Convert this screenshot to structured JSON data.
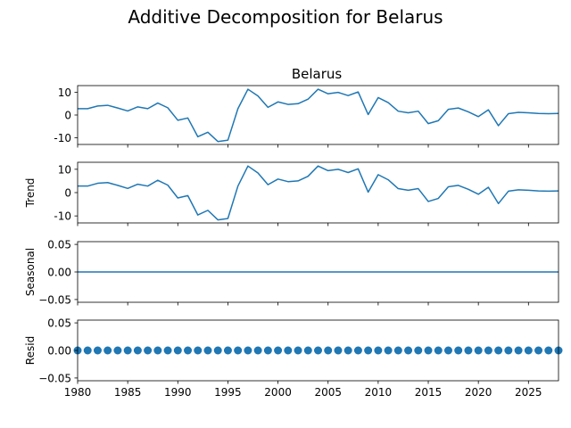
{
  "figure": {
    "suptitle": "Additive Decomposition for Belarus",
    "top_panel_title": "Belarus"
  },
  "colors": {
    "line": "#1f77b4",
    "axes": "#000000",
    "background": "#ffffff"
  },
  "chart_data": [
    {
      "type": "line",
      "panel": "observed",
      "title": "Belarus",
      "ylabel": "",
      "x": [
        1980,
        1981,
        1982,
        1983,
        1984,
        1985,
        1986,
        1987,
        1988,
        1989,
        1990,
        1991,
        1992,
        1993,
        1994,
        1995,
        1996,
        1997,
        1998,
        1999,
        2000,
        2001,
        2002,
        2003,
        2004,
        2005,
        2006,
        2007,
        2008,
        2009,
        2010,
        2011,
        2012,
        2013,
        2014,
        2015,
        2016,
        2017,
        2018,
        2019,
        2020,
        2021,
        2022,
        2023,
        2024,
        2025,
        2026,
        2027,
        2028
      ],
      "values": [
        2.8,
        2.8,
        4.0,
        4.3,
        3.1,
        1.8,
        3.6,
        2.8,
        5.3,
        3.2,
        -2.3,
        -1.3,
        -9.6,
        -7.6,
        -11.7,
        -11.1,
        2.8,
        11.4,
        8.4,
        3.4,
        5.8,
        4.7,
        5.0,
        7.0,
        11.4,
        9.4,
        10.0,
        8.6,
        10.2,
        0.2,
        7.7,
        5.5,
        1.7,
        1.0,
        1.7,
        -3.8,
        -2.5,
        2.5,
        3.1,
        1.4,
        -0.7,
        2.3,
        -4.7,
        0.6,
        1.2,
        1.0,
        0.7,
        0.6,
        0.7
      ],
      "xlim": [
        1980,
        2028
      ],
      "ylim": [
        -13,
        13
      ],
      "yticks": [
        -10,
        0,
        10
      ]
    },
    {
      "type": "line",
      "panel": "trend",
      "ylabel": "Trend",
      "x": [
        1980,
        1981,
        1982,
        1983,
        1984,
        1985,
        1986,
        1987,
        1988,
        1989,
        1990,
        1991,
        1992,
        1993,
        1994,
        1995,
        1996,
        1997,
        1998,
        1999,
        2000,
        2001,
        2002,
        2003,
        2004,
        2005,
        2006,
        2007,
        2008,
        2009,
        2010,
        2011,
        2012,
        2013,
        2014,
        2015,
        2016,
        2017,
        2018,
        2019,
        2020,
        2021,
        2022,
        2023,
        2024,
        2025,
        2026,
        2027,
        2028
      ],
      "values": [
        2.8,
        2.8,
        4.0,
        4.3,
        3.1,
        1.8,
        3.6,
        2.8,
        5.3,
        3.2,
        -2.3,
        -1.3,
        -9.6,
        -7.6,
        -11.7,
        -11.1,
        2.8,
        11.4,
        8.4,
        3.4,
        5.8,
        4.7,
        5.0,
        7.0,
        11.4,
        9.4,
        10.0,
        8.6,
        10.2,
        0.2,
        7.7,
        5.5,
        1.7,
        1.0,
        1.7,
        -3.8,
        -2.5,
        2.5,
        3.1,
        1.4,
        -0.7,
        2.3,
        -4.7,
        0.6,
        1.2,
        1.0,
        0.7,
        0.6,
        0.7
      ],
      "xlim": [
        1980,
        2028
      ],
      "ylim": [
        -13,
        13
      ],
      "yticks": [
        -10,
        0,
        10
      ]
    },
    {
      "type": "line",
      "panel": "seasonal",
      "ylabel": "Seasonal",
      "x": [
        1980,
        2028
      ],
      "values": [
        0.0,
        0.0
      ],
      "xlim": [
        1980,
        2028
      ],
      "ylim": [
        -0.055,
        0.055
      ],
      "yticks": [
        -0.05,
        0.0,
        0.05
      ],
      "ytick_labels": [
        "−0.05",
        "0.00",
        "0.05"
      ]
    },
    {
      "type": "scatter",
      "panel": "resid",
      "ylabel": "Resid",
      "x": [
        1980,
        1981,
        1982,
        1983,
        1984,
        1985,
        1986,
        1987,
        1988,
        1989,
        1990,
        1991,
        1992,
        1993,
        1994,
        1995,
        1996,
        1997,
        1998,
        1999,
        2000,
        2001,
        2002,
        2003,
        2004,
        2005,
        2006,
        2007,
        2008,
        2009,
        2010,
        2011,
        2012,
        2013,
        2014,
        2015,
        2016,
        2017,
        2018,
        2019,
        2020,
        2021,
        2022,
        2023,
        2024,
        2025,
        2026,
        2027,
        2028
      ],
      "values": [
        0,
        0,
        0,
        0,
        0,
        0,
        0,
        0,
        0,
        0,
        0,
        0,
        0,
        0,
        0,
        0,
        0,
        0,
        0,
        0,
        0,
        0,
        0,
        0,
        0,
        0,
        0,
        0,
        0,
        0,
        0,
        0,
        0,
        0,
        0,
        0,
        0,
        0,
        0,
        0,
        0,
        0,
        0,
        0,
        0,
        0,
        0,
        0,
        0
      ],
      "xlim": [
        1980,
        2028
      ],
      "ylim": [
        -0.055,
        0.055
      ],
      "yticks": [
        -0.05,
        0.0,
        0.05
      ],
      "ytick_labels": [
        "−0.05",
        "0.00",
        "0.05"
      ],
      "xticks": [
        1980,
        1985,
        1990,
        1995,
        2000,
        2005,
        2010,
        2015,
        2020,
        2025
      ],
      "xtick_labels": [
        "1980",
        "1985",
        "1990",
        "1995",
        "2000",
        "2005",
        "2010",
        "2015",
        "2020",
        "2025"
      ]
    }
  ]
}
